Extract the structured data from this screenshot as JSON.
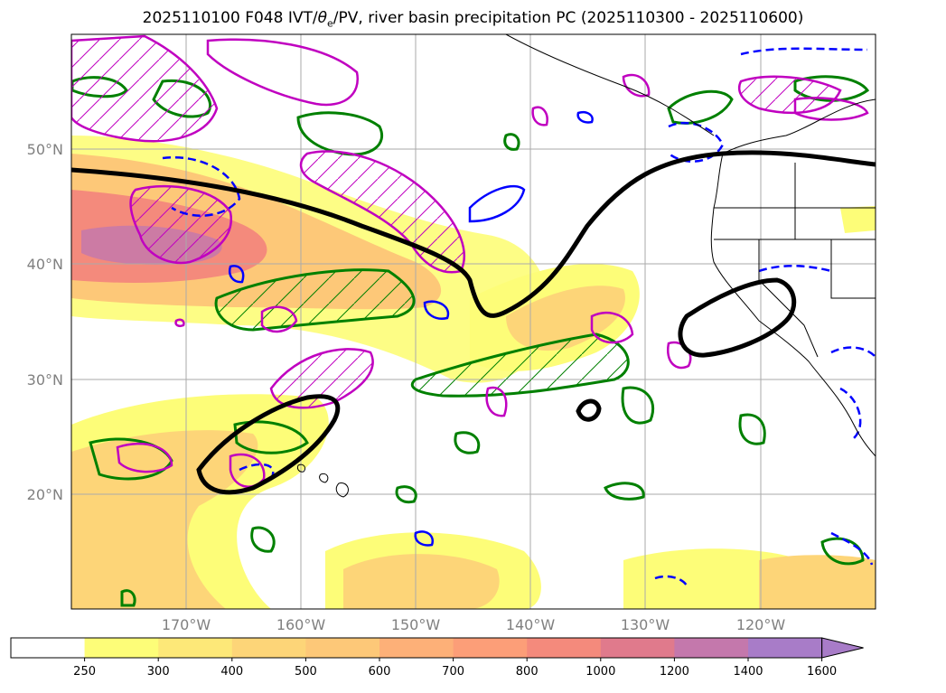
{
  "title": {
    "prefix": "2025110100 F048 IVT/",
    "theta_symbol": "θ",
    "theta_sub": "e",
    "suffix": "/PV, river basin precipitation PC (2025110300 - 2025110600)"
  },
  "lat_labels": [
    "50°N",
    "40°N",
    "30°N",
    "20°N"
  ],
  "lon_labels": [
    "170°W",
    "160°W",
    "150°W",
    "140°W",
    "130°W",
    "120°W"
  ],
  "colorbar": {
    "ticks": [
      "250",
      "300",
      "400",
      "500",
      "600",
      "700",
      "800",
      "1000",
      "1200",
      "1400",
      "1600"
    ],
    "colors": [
      "#ffffff",
      "#fdfd78",
      "#fde878",
      "#fdd578",
      "#fdc878",
      "#fdb078",
      "#fc9e78",
      "#f48a7c",
      "#e07a8c",
      "#c478ac",
      "#a87cc8"
    ],
    "extend": "max"
  },
  "legend_colors": {
    "ivt_low": "#fdfd78",
    "ivt_mid": "#fdc878",
    "ivt_high": "#f48a7c",
    "ivt_peak": "#c478ac",
    "theta_e": "#008000",
    "pv_positive": "#c000c0",
    "pv_negative": "#0000ff",
    "basin_pc": "#000000"
  },
  "map_extent": {
    "lon_range": [
      -180,
      -110
    ],
    "lat_range": [
      10,
      60
    ]
  }
}
